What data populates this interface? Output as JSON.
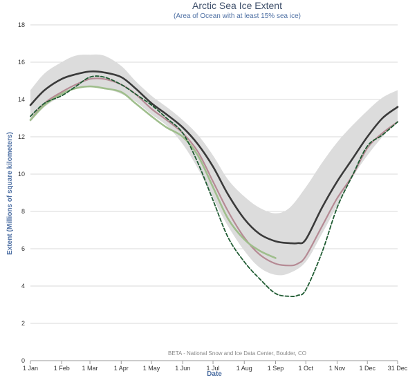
{
  "chart_data": {
    "type": "line",
    "title": "Arctic Sea Ice Extent",
    "subtitle": "(Area of Ocean with at least 15% sea ice)",
    "xlabel": "Date",
    "ylabel": "Extent (Millions of square kilometers)",
    "credit": "BETA - National Snow and Ice Data Center, Boulder, CO",
    "x_ticks": [
      "1 Jan",
      "1 Feb",
      "1 Mar",
      "1 Apr",
      "1 May",
      "1 Jun",
      "1 Jul",
      "1 Aug",
      "1 Sep",
      "1 Oct",
      "1 Nov",
      "1 Dec",
      "31 Dec"
    ],
    "x_tick_days": [
      1,
      32,
      60,
      91,
      121,
      152,
      182,
      213,
      244,
      274,
      305,
      335,
      365
    ],
    "xlim": [
      1,
      365
    ],
    "ylim": [
      0,
      18
    ],
    "y_ticks": [
      0,
      2,
      4,
      6,
      8,
      10,
      12,
      14,
      16,
      18
    ],
    "grid": true,
    "colors": {
      "band": "#dcdcdc",
      "median": "#3a3a3a",
      "pink": "#b58a94",
      "green_line": "#9fbe8c",
      "dashed": "#1f5b32",
      "grid": "#d8d8d8",
      "axis": "#999999"
    },
    "band": {
      "days": [
        1,
        15,
        32,
        46,
        60,
        74,
        91,
        105,
        121,
        136,
        152,
        167,
        182,
        197,
        213,
        228,
        244,
        258,
        274,
        290,
        305,
        320,
        335,
        350,
        365
      ],
      "upper": [
        14.5,
        15.4,
        16.0,
        16.35,
        16.4,
        16.35,
        15.8,
        15.0,
        14.2,
        13.6,
        12.9,
        12.1,
        11.0,
        9.7,
        8.8,
        8.2,
        7.9,
        8.2,
        9.3,
        10.6,
        11.7,
        12.6,
        13.4,
        14.1,
        14.5
      ],
      "lower": [
        12.8,
        13.6,
        14.2,
        14.6,
        14.7,
        14.6,
        14.3,
        13.9,
        13.2,
        12.6,
        11.6,
        10.3,
        8.7,
        7.2,
        5.9,
        5.0,
        4.6,
        4.7,
        5.3,
        6.8,
        8.3,
        9.8,
        11.0,
        12.0,
        12.8
      ]
    },
    "series": [
      {
        "id": "median",
        "days": [
          1,
          15,
          32,
          46,
          60,
          74,
          91,
          105,
          121,
          136,
          152,
          167,
          182,
          197,
          213,
          228,
          244,
          258,
          266,
          274,
          290,
          305,
          320,
          335,
          350,
          365
        ],
        "values": [
          13.7,
          14.5,
          15.1,
          15.35,
          15.5,
          15.45,
          15.2,
          14.6,
          13.8,
          13.2,
          12.5,
          11.6,
          10.4,
          8.9,
          7.6,
          6.8,
          6.4,
          6.3,
          6.3,
          6.5,
          8.2,
          9.6,
          10.8,
          12.0,
          13.0,
          13.6
        ]
      },
      {
        "id": "pink",
        "days": [
          1,
          15,
          32,
          46,
          60,
          74,
          91,
          105,
          121,
          136,
          152,
          167,
          182,
          197,
          213,
          228,
          244,
          258,
          266,
          274,
          290,
          305,
          320,
          335,
          350,
          365
        ],
        "values": [
          12.9,
          13.8,
          14.4,
          14.8,
          15.1,
          15.1,
          14.8,
          14.3,
          13.5,
          12.9,
          12.2,
          11.2,
          9.6,
          8.0,
          6.6,
          5.7,
          5.2,
          5.1,
          5.2,
          5.6,
          7.2,
          8.7,
          9.9,
          11.4,
          12.2,
          12.8
        ]
      },
      {
        "id": "green",
        "days": [
          1,
          15,
          32,
          46,
          60,
          74,
          91,
          105,
          121,
          136,
          152,
          167,
          182,
          197,
          213,
          228,
          244
        ],
        "values": [
          12.9,
          13.7,
          14.3,
          14.6,
          14.7,
          14.6,
          14.4,
          13.8,
          13.1,
          12.5,
          12.0,
          11.0,
          9.3,
          7.6,
          6.5,
          5.9,
          5.5
        ]
      },
      {
        "id": "dashed",
        "dashed": true,
        "days": [
          1,
          15,
          32,
          46,
          60,
          74,
          91,
          105,
          121,
          136,
          152,
          167,
          182,
          197,
          213,
          228,
          244,
          258,
          266,
          274,
          290,
          305,
          320,
          335,
          350,
          365
        ],
        "values": [
          13.1,
          13.8,
          14.2,
          14.7,
          15.2,
          15.2,
          14.8,
          14.3,
          13.7,
          13.0,
          12.2,
          10.6,
          8.6,
          6.6,
          5.3,
          4.4,
          3.6,
          3.45,
          3.5,
          3.8,
          5.8,
          8.2,
          9.9,
          11.5,
          12.1,
          12.8
        ]
      }
    ]
  }
}
